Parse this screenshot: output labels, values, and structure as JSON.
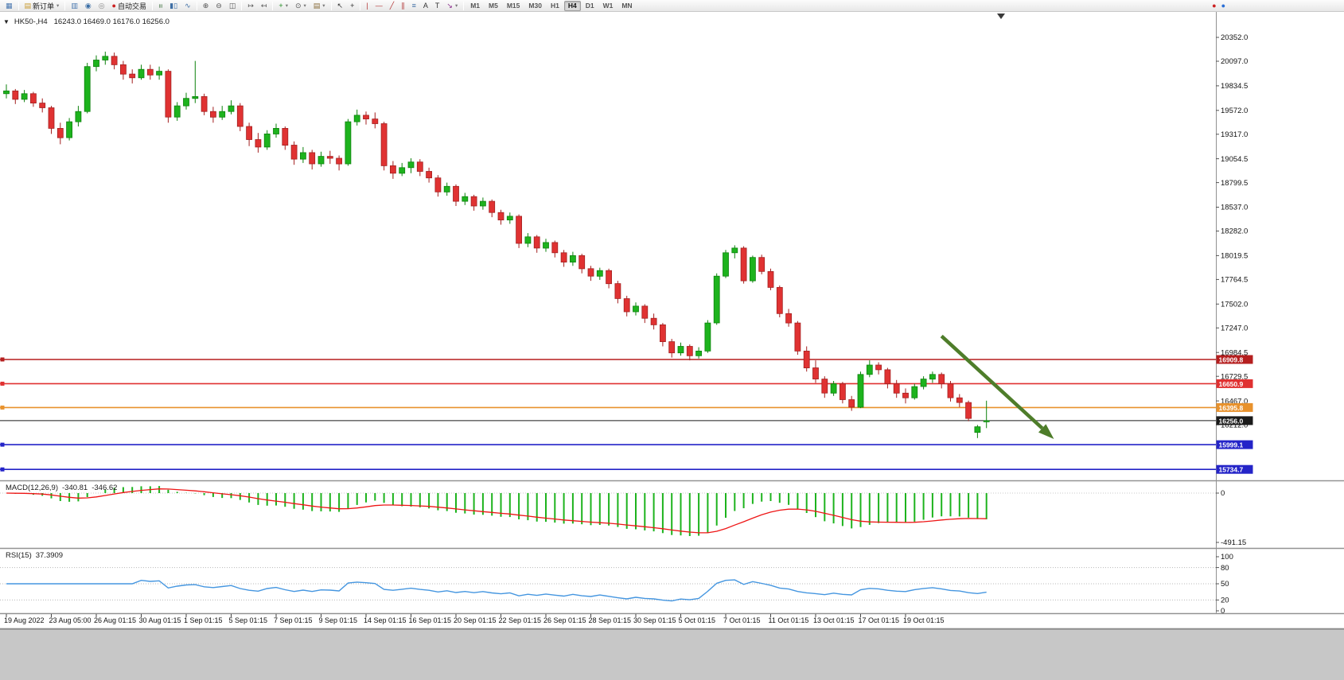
{
  "colors": {
    "bull": "#1db31d",
    "bull_border": "#0d820d",
    "bear": "#e03232",
    "bear_border": "#a32020",
    "macd_hist": "#1db31d",
    "macd_signal": "#ee1515",
    "rsi_line": "#4596e0",
    "arrow": "#4e7d2a",
    "axis_text": "#111111",
    "separator": "#919191"
  },
  "toolbar": {
    "groups": [
      {
        "name": "window",
        "items": [
          {
            "name": "chart-window-icon",
            "glyph": "▦",
            "color": "#4a78b0"
          }
        ]
      },
      {
        "name": "trade",
        "items": [
          {
            "name": "new-order-button",
            "glyph": "▤",
            "color": "#c89a2e",
            "label": "新订单",
            "dropdown": true
          }
        ]
      },
      {
        "name": "panels",
        "items": [
          {
            "name": "market-watch-icon",
            "glyph": "▥",
            "color": "#4a78b0"
          },
          {
            "name": "data-window-icon",
            "glyph": "◉",
            "color": "#3a6ea5"
          },
          {
            "name": "strategy-tester-icon",
            "glyph": "◎",
            "color": "#8a8a8a"
          },
          {
            "name": "autotrade-button",
            "glyph": "●",
            "color": "#cc2222",
            "label": "自动交易"
          }
        ]
      },
      {
        "name": "chart-types",
        "items": [
          {
            "name": "bar-chart-icon",
            "glyph": "≡",
            "color": "#4b7a4b",
            "rot": true
          },
          {
            "name": "candle-chart-icon",
            "glyph": "▮▯",
            "color": "#3f6fa5"
          },
          {
            "name": "line-chart-icon",
            "glyph": "∿",
            "color": "#3f6fa5"
          }
        ]
      },
      {
        "name": "zoom",
        "items": [
          {
            "name": "zoom-in-icon",
            "glyph": "⊕",
            "color": "#555555"
          },
          {
            "name": "zoom-out-icon",
            "glyph": "⊖",
            "color": "#555555"
          },
          {
            "name": "tile-windows-icon",
            "glyph": "◫",
            "color": "#555555"
          }
        ]
      },
      {
        "name": "scroll",
        "items": [
          {
            "name": "auto-scroll-icon",
            "glyph": "↦",
            "color": "#555555"
          },
          {
            "name": "chart-shift-icon",
            "glyph": "↤",
            "color": "#555555"
          }
        ]
      },
      {
        "name": "indicators",
        "items": [
          {
            "name": "indicators-add-icon",
            "glyph": "+",
            "color": "#1c8a1c",
            "dropdown": true
          },
          {
            "name": "periods-icon",
            "glyph": "⊙",
            "color": "#555555",
            "dropdown": true
          },
          {
            "name": "templates-icon",
            "glyph": "▤",
            "color": "#8a6d3b",
            "dropdown": true
          }
        ]
      },
      {
        "name": "cursor-tools",
        "items": [
          {
            "name": "cursor-icon",
            "glyph": "↖",
            "color": "#333333"
          },
          {
            "name": "crosshair-icon",
            "glyph": "+",
            "color": "#333333"
          }
        ]
      },
      {
        "name": "draw-tools",
        "items": [
          {
            "name": "vline-icon",
            "glyph": "|",
            "color": "#b23434"
          },
          {
            "name": "hline-icon",
            "glyph": "—",
            "color": "#b23434"
          },
          {
            "name": "trendline-icon",
            "glyph": "╱",
            "color": "#b23434"
          },
          {
            "name": "channel-icon",
            "glyph": "∥",
            "color": "#b23434"
          },
          {
            "name": "fibo-icon",
            "glyph": "≡",
            "color": "#3f6fa5"
          },
          {
            "name": "text-icon",
            "glyph": "A",
            "color": "#333333"
          },
          {
            "name": "label-icon",
            "glyph": "T",
            "color": "#333333"
          },
          {
            "name": "arrows-icon",
            "glyph": "↘",
            "color": "#8a2a8a",
            "dropdown": true
          }
        ]
      }
    ],
    "timeframes": [
      "M1",
      "M5",
      "M15",
      "M30",
      "H1",
      "H4",
      "D1",
      "W1",
      "MN"
    ],
    "active_timeframe": "H4",
    "right_icons": [
      {
        "name": "alerts-icon",
        "glyph": "●",
        "color": "#cc2222"
      },
      {
        "name": "community-icon",
        "glyph": "●",
        "color": "#2a6fd6"
      }
    ]
  },
  "chart": {
    "collapse_glyph": "▼",
    "symbol": "HK50-,H4",
    "ohlc": "16243.0 16469.0 16176.0 16256.0",
    "price_axis_labels": [
      "20352.0",
      "20097.0",
      "19834.5",
      "19572.0",
      "19317.0",
      "19054.5",
      "18799.5",
      "18537.0",
      "18282.0",
      "18019.5",
      "17764.5",
      "17502.0",
      "17247.0",
      "16984.5",
      "16729.5",
      "16467.0",
      "16212.0"
    ],
    "time_axis": {
      "labels": [
        "19 Aug 2022",
        "23 Aug 05:00",
        "26 Aug 01:15",
        "30 Aug 01:15",
        "1 Sep 01:15",
        "5 Sep 01:15",
        "7 Sep 01:15",
        "9 Sep 01:15",
        "14 Sep 01:15",
        "16 Sep 01:15",
        "20 Sep 01:15",
        "22 Sep 01:15",
        "26 Sep 01:15",
        "28 Sep 01:15",
        "30 Sep 01:15",
        "5 Oct 01:15",
        "7 Oct 01:15",
        "11 Oct 01:15",
        "13 Oct 01:15",
        "17 Oct 01:15",
        "19 Oct 01:15"
      ],
      "bars": [
        0,
        5,
        10,
        15,
        20,
        25,
        30,
        35,
        40,
        45,
        50,
        55,
        60,
        65,
        70,
        75,
        80,
        85,
        90,
        95,
        100
      ]
    }
  },
  "indicators": {
    "macd": {
      "title": "MACD(12,26,9)",
      "value_main": "-340.81",
      "value_signal": "-346.62",
      "axis_labels": [
        "0",
        "-491.15"
      ]
    },
    "rsi": {
      "title": "RSI(15)",
      "value": "37.3909",
      "axis_labels": [
        "100",
        "80",
        "50",
        "20",
        "0"
      ],
      "levels": [
        80,
        50,
        20
      ]
    }
  },
  "chart_data": {
    "type": "candlestick",
    "symbol": "HK50-",
    "timeframe": "H4",
    "visible_bars": 110,
    "price_range_visible": [
      15650,
      20630
    ],
    "current_bar_ohlc": {
      "open": 16243.0,
      "high": 16469.0,
      "low": 16176.0,
      "close": 16256.0
    },
    "candles": [
      [
        19750,
        19850,
        19700,
        19780
      ],
      [
        19780,
        19800,
        19640,
        19690
      ],
      [
        19690,
        19790,
        19660,
        19750
      ],
      [
        19750,
        19770,
        19610,
        19650
      ],
      [
        19650,
        19700,
        19550,
        19600
      ],
      [
        19600,
        19620,
        19320,
        19380
      ],
      [
        19380,
        19440,
        19210,
        19280
      ],
      [
        19280,
        19490,
        19250,
        19450
      ],
      [
        19450,
        19620,
        19400,
        19560
      ],
      [
        19560,
        20080,
        19540,
        20040
      ],
      [
        20040,
        20160,
        19990,
        20110
      ],
      [
        20110,
        20200,
        20060,
        20150
      ],
      [
        20150,
        20190,
        20010,
        20060
      ],
      [
        20060,
        20100,
        19900,
        19960
      ],
      [
        19960,
        20010,
        19860,
        19920
      ],
      [
        19920,
        20060,
        19900,
        20010
      ],
      [
        20010,
        20060,
        19900,
        19950
      ],
      [
        19950,
        20040,
        19900,
        19990
      ],
      [
        19990,
        20010,
        19440,
        19500
      ],
      [
        19500,
        19660,
        19460,
        19620
      ],
      [
        19620,
        19760,
        19580,
        19700
      ],
      [
        19700,
        20100,
        19650,
        19720
      ],
      [
        19720,
        19750,
        19520,
        19560
      ],
      [
        19560,
        19610,
        19440,
        19500
      ],
      [
        19500,
        19620,
        19470,
        19560
      ],
      [
        19560,
        19680,
        19530,
        19620
      ],
      [
        19620,
        19650,
        19350,
        19400
      ],
      [
        19400,
        19440,
        19190,
        19260
      ],
      [
        19260,
        19330,
        19120,
        19180
      ],
      [
        19180,
        19360,
        19150,
        19320
      ],
      [
        19320,
        19430,
        19280,
        19380
      ],
      [
        19380,
        19400,
        19150,
        19200
      ],
      [
        19200,
        19240,
        18990,
        19050
      ],
      [
        19050,
        19180,
        19010,
        19120
      ],
      [
        19120,
        19150,
        18940,
        19000
      ],
      [
        19000,
        19130,
        18970,
        19080
      ],
      [
        19080,
        19140,
        19000,
        19060
      ],
      [
        19060,
        19090,
        18930,
        19000
      ],
      [
        19000,
        19480,
        18980,
        19450
      ],
      [
        19450,
        19580,
        19410,
        19520
      ],
      [
        19520,
        19560,
        19420,
        19480
      ],
      [
        19480,
        19550,
        19380,
        19430
      ],
      [
        19430,
        19450,
        18930,
        18980
      ],
      [
        18980,
        19030,
        18840,
        18900
      ],
      [
        18900,
        19010,
        18870,
        18960
      ],
      [
        18960,
        19060,
        18900,
        19020
      ],
      [
        19020,
        19050,
        18870,
        18920
      ],
      [
        18920,
        18960,
        18800,
        18850
      ],
      [
        18850,
        18880,
        18650,
        18700
      ],
      [
        18700,
        18800,
        18660,
        18760
      ],
      [
        18760,
        18780,
        18550,
        18600
      ],
      [
        18600,
        18690,
        18560,
        18650
      ],
      [
        18650,
        18670,
        18500,
        18550
      ],
      [
        18550,
        18640,
        18510,
        18600
      ],
      [
        18600,
        18620,
        18430,
        18480
      ],
      [
        18480,
        18510,
        18350,
        18400
      ],
      [
        18400,
        18480,
        18360,
        18440
      ],
      [
        18440,
        18460,
        18100,
        18150
      ],
      [
        18150,
        18260,
        18110,
        18220
      ],
      [
        18220,
        18240,
        18050,
        18100
      ],
      [
        18100,
        18200,
        18060,
        18160
      ],
      [
        18160,
        18180,
        18000,
        18050
      ],
      [
        18050,
        18080,
        17900,
        17950
      ],
      [
        17950,
        18060,
        17910,
        18020
      ],
      [
        18020,
        18040,
        17830,
        17880
      ],
      [
        17880,
        17910,
        17750,
        17800
      ],
      [
        17800,
        17890,
        17760,
        17860
      ],
      [
        17860,
        17880,
        17670,
        17720
      ],
      [
        17720,
        17750,
        17510,
        17560
      ],
      [
        17560,
        17590,
        17370,
        17420
      ],
      [
        17420,
        17520,
        17380,
        17480
      ],
      [
        17480,
        17500,
        17300,
        17350
      ],
      [
        17350,
        17400,
        17230,
        17280
      ],
      [
        17280,
        17300,
        17050,
        17100
      ],
      [
        17100,
        17130,
        16930,
        16980
      ],
      [
        16980,
        17090,
        16950,
        17050
      ],
      [
        17050,
        17070,
        16900,
        16950
      ],
      [
        16950,
        17040,
        16920,
        17000
      ],
      [
        17000,
        17330,
        16980,
        17300
      ],
      [
        17300,
        17830,
        17280,
        17800
      ],
      [
        17800,
        18080,
        17780,
        18050
      ],
      [
        18050,
        18130,
        17990,
        18100
      ],
      [
        18100,
        18120,
        17720,
        17750
      ],
      [
        17750,
        18020,
        17730,
        18000
      ],
      [
        18000,
        18030,
        17820,
        17850
      ],
      [
        17850,
        17880,
        17650,
        17680
      ],
      [
        17680,
        17700,
        17360,
        17400
      ],
      [
        17400,
        17450,
        17260,
        17300
      ],
      [
        17300,
        17320,
        16960,
        17000
      ],
      [
        17000,
        17050,
        16780,
        16820
      ],
      [
        16820,
        16900,
        16660,
        16700
      ],
      [
        16700,
        16730,
        16500,
        16550
      ],
      [
        16550,
        16680,
        16520,
        16650
      ],
      [
        16650,
        16670,
        16440,
        16480
      ],
      [
        16480,
        16520,
        16360,
        16400
      ],
      [
        16400,
        16780,
        16390,
        16750
      ],
      [
        16750,
        16900,
        16720,
        16850
      ],
      [
        16850,
        16880,
        16750,
        16800
      ],
      [
        16800,
        16820,
        16600,
        16650
      ],
      [
        16650,
        16690,
        16500,
        16550
      ],
      [
        16550,
        16600,
        16440,
        16500
      ],
      [
        16500,
        16650,
        16480,
        16620
      ],
      [
        16620,
        16730,
        16590,
        16700
      ],
      [
        16700,
        16780,
        16660,
        16750
      ],
      [
        16750,
        16770,
        16600,
        16650
      ],
      [
        16650,
        16680,
        16460,
        16500
      ],
      [
        16500,
        16540,
        16400,
        16450
      ],
      [
        16450,
        16470,
        16250,
        16280
      ],
      [
        16130,
        16210,
        16070,
        16190
      ],
      [
        16243.0,
        16469.0,
        16176.0,
        16256.0
      ]
    ],
    "hlines": [
      {
        "price": 16909.8,
        "label": "16909.8",
        "color": "#b51f1f",
        "role": "resistance"
      },
      {
        "price": 16650.9,
        "label": "16650.9",
        "color": "#e03030",
        "role": "resistance"
      },
      {
        "price": 16395.8,
        "label": "16395.8",
        "color": "#e8922d",
        "role": "level"
      },
      {
        "price": 16256.0,
        "label": "16256.0",
        "color": "#1a1a1a",
        "role": "current_price"
      },
      {
        "price": 15999.1,
        "label": "15999.1",
        "color": "#2424c8",
        "role": "support"
      },
      {
        "price": 15734.7,
        "label": "15734.7",
        "color": "#2424c8",
        "role": "support"
      }
    ],
    "macd_settings": {
      "fast": 12,
      "slow": 26,
      "signal": 9,
      "last_main": -340.81,
      "last_signal": -346.62,
      "scale_min": -491.15
    },
    "rsi_settings": {
      "period": 15,
      "last_value": 37.3909
    },
    "arrow_annotation": {
      "from_bar": 104,
      "from_price": 17160,
      "to_bar": 116.5,
      "to_price": 16060,
      "color": "#4e7d2a"
    }
  }
}
